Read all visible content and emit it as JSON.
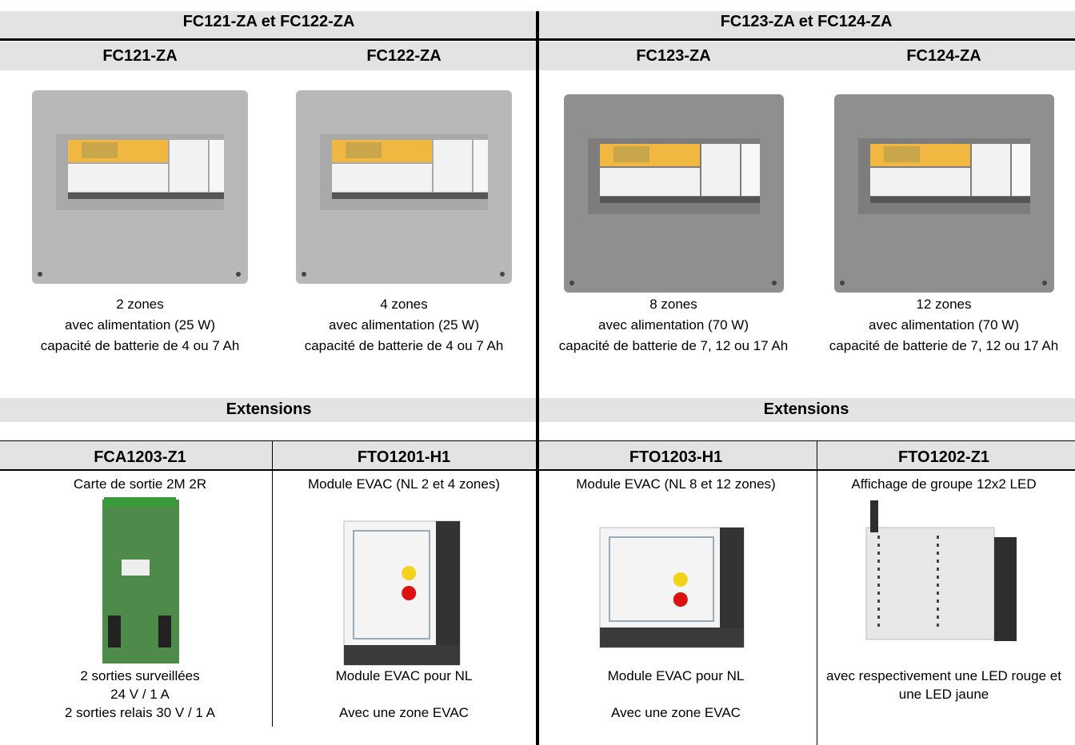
{
  "header": {
    "groups": [
      "FC121-ZA et FC122-ZA",
      "FC123-ZA et FC124-ZA"
    ]
  },
  "models": [
    {
      "name": "FC121-ZA",
      "description": [
        "2 zones",
        "avec alimentation (25 W)",
        "capacité de batterie de 4 ou 7 Ah"
      ]
    },
    {
      "name": "FC122-ZA",
      "description": [
        "4 zones",
        "avec alimentation (25 W)",
        "capacité de batterie de 4 ou 7 Ah"
      ]
    },
    {
      "name": "FC123-ZA",
      "description": [
        "8 zones",
        "avec alimentation (70 W)",
        "capacité de batterie de 7, 12 ou 17 Ah"
      ]
    },
    {
      "name": "FC124-ZA",
      "description": [
        "12 zones",
        "avec alimentation (70 W)",
        "capacité de batterie de 7, 12 ou 17 Ah"
      ]
    }
  ],
  "extension_headers": [
    "Extensions",
    "Extensions"
  ],
  "extensions": [
    {
      "name": "FCA1203-Z1",
      "subtitle": "Carte de sortie 2M 2R",
      "description": [
        "2 sorties surveillées",
        "24 V / 1 A",
        "2 sorties relais 30 V / 1 A"
      ]
    },
    {
      "name": "FTO1201-H1",
      "subtitle": "Module EVAC (NL 2 et 4 zones)",
      "description": [
        "Module EVAC pour NL",
        "Avec une zone EVAC"
      ]
    },
    {
      "name": "FTO1203-H1",
      "subtitle": "Module EVAC (NL 8 et 12 zones)",
      "description": [
        "Module EVAC pour NL",
        "Avec une zone EVAC"
      ]
    },
    {
      "name": "FTO1202-Z1",
      "subtitle": "Affichage de groupe 12x2 LED",
      "description": [
        "avec respectivement une LED rouge et une LED jaune"
      ]
    }
  ]
}
